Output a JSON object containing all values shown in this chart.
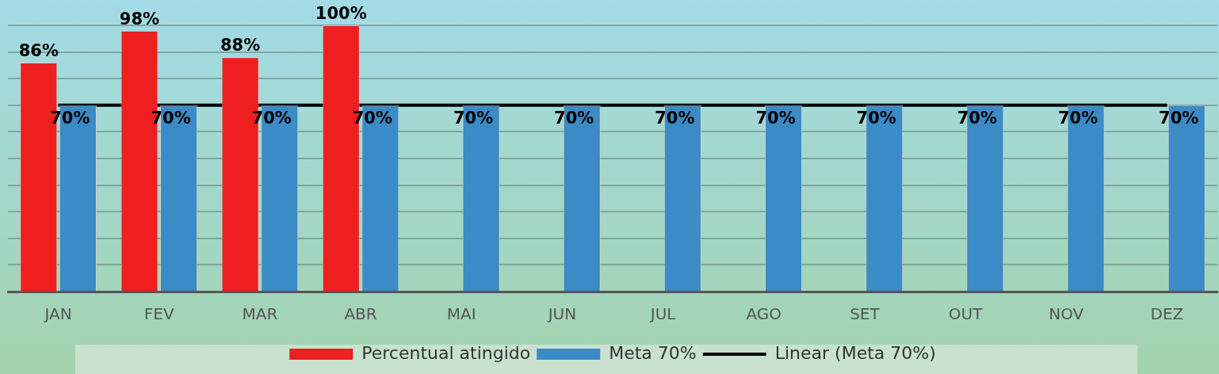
{
  "chart_data": {
    "type": "bar",
    "categories": [
      "JAN",
      "FEV",
      "MAR",
      "ABR",
      "MAI",
      "JUN",
      "JUL",
      "AGO",
      "SET",
      "OUT",
      "NOV",
      "DEZ"
    ],
    "series": [
      {
        "name": "Percentual atingido",
        "color": "#ee1f1f",
        "values": [
          86,
          98,
          88,
          100,
          null,
          null,
          null,
          null,
          null,
          null,
          null,
          null
        ],
        "value_labels": [
          "86%",
          "98%",
          "88%",
          "100%",
          null,
          null,
          null,
          null,
          null,
          null,
          null,
          null
        ]
      },
      {
        "name": "Meta 70%",
        "color": "#3a8bc6",
        "values": [
          70,
          70,
          70,
          70,
          70,
          70,
          70,
          70,
          70,
          70,
          70,
          70
        ],
        "value_labels": [
          "70%",
          "70%",
          "70%",
          "70%",
          "70%",
          "70%",
          "70%",
          "70%",
          "70%",
          "70%",
          "70%",
          "70%"
        ]
      },
      {
        "name": "Linear (Meta 70%)",
        "type": "line",
        "color": "#000000",
        "x": [
          "JAN",
          "DEZ"
        ],
        "values": [
          70,
          70
        ]
      }
    ],
    "grid": "y",
    "tick_labels": "x",
    "legend": "bottom",
    "marker": "none"
  }
}
